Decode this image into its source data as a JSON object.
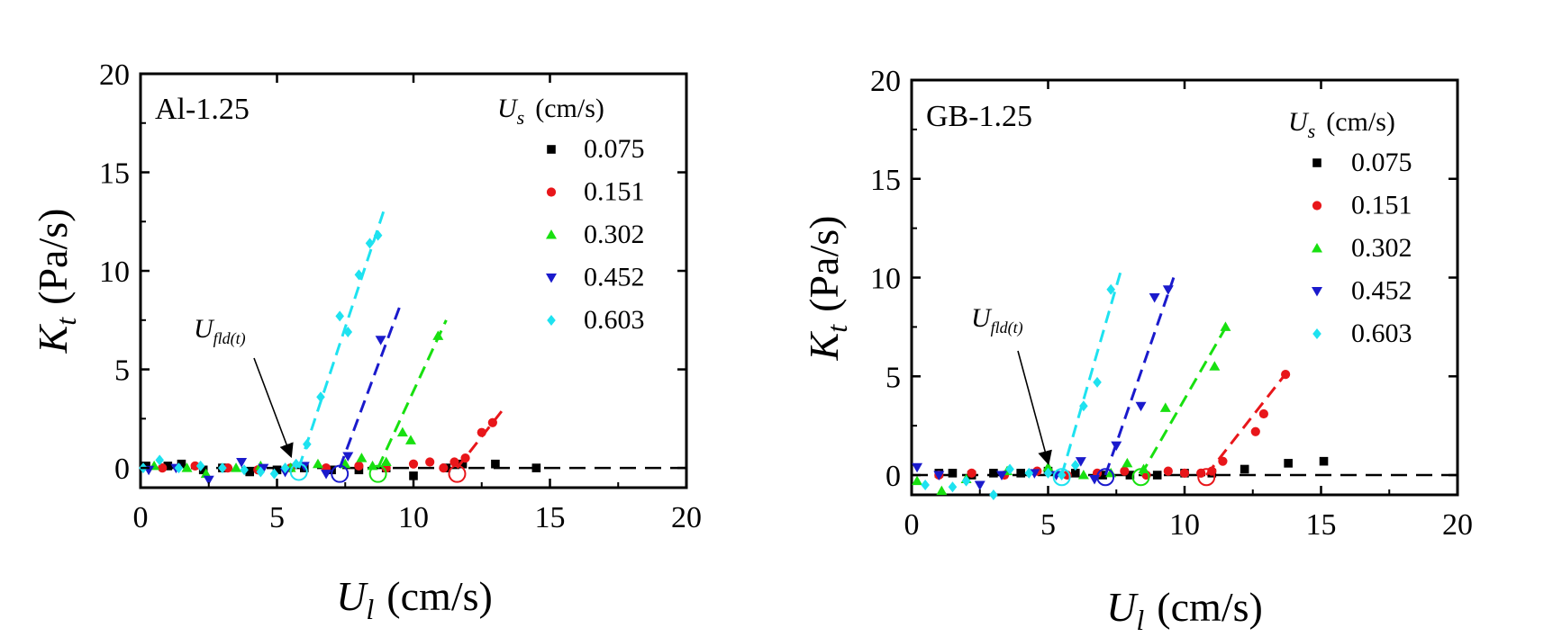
{
  "charts": [
    {
      "panel_label": "Al-1.25",
      "legend_title_sym": "U",
      "legend_title_sub": "s",
      "legend_title_unit": "(cm/s)",
      "ylabel_sym": "K",
      "ylabel_sub": "t",
      "ylabel_unit": "(Pa/s)",
      "xlabel_sym": "U",
      "xlabel_sub": "l",
      "xlabel_unit": "(cm/s)",
      "annotation_sym": "U",
      "annotation_sub": "fld(t)"
    },
    {
      "panel_label": "GB-1.25",
      "legend_title_sym": "U",
      "legend_title_sub": "s",
      "legend_title_unit": "(cm/s)",
      "ylabel_sym": "K",
      "ylabel_sub": "t",
      "ylabel_unit": "(Pa/s)",
      "xlabel_sym": "U",
      "xlabel_sub": "l",
      "xlabel_unit": "(cm/s)",
      "annotation_sym": "U",
      "annotation_sub": "fld(t)"
    }
  ],
  "chart_data": [
    {
      "type": "scatter",
      "title": "",
      "panel": "Al-1.25",
      "xlim": [
        0,
        20
      ],
      "ylim": [
        -1,
        20
      ],
      "xticks": [
        0,
        5,
        10,
        15,
        20
      ],
      "yticks": [
        0,
        5,
        10,
        15,
        20
      ],
      "grid": false,
      "legend_position": "top-right",
      "annotation_x": 5.5,
      "series": [
        {
          "name": "0.075",
          "color": "#000000",
          "marker": "square",
          "points": [
            [
              0.2,
              0.1
            ],
            [
              1.0,
              0.1
            ],
            [
              1.5,
              0.2
            ],
            [
              2.3,
              -0.1
            ],
            [
              3.0,
              0.0
            ],
            [
              4.0,
              -0.2
            ],
            [
              5.0,
              -0.1
            ],
            [
              6.0,
              0.0
            ],
            [
              7.0,
              -0.1
            ],
            [
              8.0,
              -0.1
            ],
            [
              9.0,
              0.0
            ],
            [
              10.0,
              -0.4
            ],
            [
              11.2,
              0.0
            ],
            [
              11.8,
              0.2
            ],
            [
              13.0,
              0.2
            ],
            [
              14.5,
              0.0
            ]
          ],
          "onset": null,
          "fit": null
        },
        {
          "name": "0.151",
          "color": "#e8161a",
          "marker": "circle",
          "points": [
            [
              0.8,
              0.0
            ],
            [
              2.0,
              0.1
            ],
            [
              3.2,
              0.0
            ],
            [
              4.3,
              -0.1
            ],
            [
              5.5,
              0.0
            ],
            [
              6.8,
              0.0
            ],
            [
              8.0,
              0.1
            ],
            [
              9.0,
              0.0
            ],
            [
              10.0,
              0.2
            ],
            [
              10.6,
              0.3
            ],
            [
              11.1,
              0.0
            ],
            [
              11.5,
              0.3
            ],
            [
              11.9,
              0.5
            ],
            [
              12.5,
              1.8
            ],
            [
              12.9,
              2.3
            ]
          ],
          "onset": [
            11.6,
            -0.3
          ],
          "fit": [
            [
              11.6,
              0.0
            ],
            [
              13.3,
              3.0
            ]
          ]
        },
        {
          "name": "0.302",
          "color": "#18e010",
          "marker": "triangle-up",
          "points": [
            [
              0.5,
              0.1
            ],
            [
              1.7,
              0.0
            ],
            [
              2.4,
              -0.3
            ],
            [
              3.5,
              0.0
            ],
            [
              4.4,
              0.1
            ],
            [
              5.5,
              0.0
            ],
            [
              6.5,
              0.2
            ],
            [
              7.5,
              0.2
            ],
            [
              8.1,
              0.5
            ],
            [
              8.5,
              0.1
            ],
            [
              9.0,
              0.3
            ],
            [
              9.6,
              1.8
            ],
            [
              9.9,
              1.4
            ],
            [
              10.9,
              6.7
            ]
          ],
          "onset": [
            8.7,
            -0.3
          ],
          "fit": [
            [
              8.7,
              0.0
            ],
            [
              11.2,
              7.5
            ]
          ]
        },
        {
          "name": "0.452",
          "color": "#1a1acc",
          "marker": "triangle-down",
          "points": [
            [
              0.3,
              -0.1
            ],
            [
              1.3,
              0.0
            ],
            [
              2.5,
              -0.6
            ],
            [
              3.7,
              0.3
            ],
            [
              4.5,
              0.0
            ],
            [
              5.3,
              -0.2
            ],
            [
              6.0,
              0.1
            ],
            [
              6.8,
              -0.3
            ],
            [
              7.6,
              0.6
            ],
            [
              8.8,
              6.5
            ]
          ],
          "onset": [
            7.3,
            -0.3
          ],
          "fit": [
            [
              7.3,
              0.0
            ],
            [
              9.5,
              8.2
            ]
          ]
        },
        {
          "name": "0.603",
          "color": "#1ee2f0",
          "marker": "diamond",
          "points": [
            [
              0.1,
              0.0
            ],
            [
              0.7,
              0.4
            ],
            [
              1.4,
              0.0
            ],
            [
              2.2,
              0.1
            ],
            [
              3.0,
              0.0
            ],
            [
              3.8,
              -0.1
            ],
            [
              4.4,
              -0.2
            ],
            [
              4.9,
              -0.3
            ],
            [
              5.3,
              0.0
            ],
            [
              5.7,
              0.2
            ],
            [
              6.1,
              1.2
            ],
            [
              6.6,
              3.6
            ],
            [
              7.3,
              7.7
            ],
            [
              7.6,
              6.9
            ],
            [
              8.0,
              9.8
            ],
            [
              8.4,
              11.4
            ],
            [
              8.7,
              11.8
            ]
          ],
          "onset": [
            5.8,
            -0.2
          ],
          "fit": [
            [
              5.8,
              0.0
            ],
            [
              8.9,
              13.0
            ]
          ]
        }
      ]
    },
    {
      "type": "scatter",
      "title": "",
      "panel": "GB-1.25",
      "xlim": [
        0,
        20
      ],
      "ylim": [
        -1,
        20
      ],
      "xticks": [
        0,
        5,
        10,
        15,
        20
      ],
      "yticks": [
        0,
        5,
        10,
        15,
        20
      ],
      "grid": false,
      "legend_position": "top-right",
      "annotation_x": 5.0,
      "series": [
        {
          "name": "0.075",
          "color": "#000000",
          "marker": "square",
          "points": [
            [
              1.0,
              0.1
            ],
            [
              1.5,
              0.1
            ],
            [
              2.2,
              0.0
            ],
            [
              3.0,
              0.1
            ],
            [
              4.0,
              0.1
            ],
            [
              5.0,
              0.2
            ],
            [
              6.0,
              0.1
            ],
            [
              7.0,
              0.0
            ],
            [
              8.0,
              0.0
            ],
            [
              9.0,
              0.0
            ],
            [
              10.0,
              0.1
            ],
            [
              11.0,
              0.1
            ],
            [
              12.2,
              0.3
            ],
            [
              13.8,
              0.6
            ],
            [
              15.1,
              0.7
            ]
          ],
          "onset": null,
          "fit": null
        },
        {
          "name": "0.151",
          "color": "#e8161a",
          "marker": "circle",
          "points": [
            [
              1.0,
              0.0
            ],
            [
              2.2,
              0.1
            ],
            [
              3.4,
              0.0
            ],
            [
              4.6,
              0.2
            ],
            [
              5.7,
              0.0
            ],
            [
              6.8,
              0.1
            ],
            [
              7.8,
              0.2
            ],
            [
              8.6,
              0.0
            ],
            [
              9.4,
              0.2
            ],
            [
              10.0,
              0.1
            ],
            [
              10.6,
              0.1
            ],
            [
              11.0,
              0.2
            ],
            [
              11.4,
              0.7
            ],
            [
              12.6,
              2.2
            ],
            [
              12.9,
              3.1
            ],
            [
              13.7,
              5.1
            ]
          ],
          "onset": [
            10.8,
            -0.1
          ],
          "fit": [
            [
              10.8,
              0.0
            ],
            [
              13.8,
              5.3
            ]
          ]
        },
        {
          "name": "0.302",
          "color": "#18e010",
          "marker": "triangle-up",
          "points": [
            [
              0.2,
              -0.3
            ],
            [
              1.1,
              -0.8
            ],
            [
              2.0,
              -0.2
            ],
            [
              3.5,
              0.2
            ],
            [
              5.0,
              0.4
            ],
            [
              6.3,
              0.0
            ],
            [
              7.3,
              0.1
            ],
            [
              7.9,
              0.6
            ],
            [
              8.5,
              0.3
            ],
            [
              9.3,
              3.4
            ],
            [
              11.1,
              5.5
            ],
            [
              11.5,
              7.5
            ]
          ],
          "onset": [
            8.4,
            -0.1
          ],
          "fit": [
            [
              8.4,
              0.0
            ],
            [
              11.6,
              7.7
            ]
          ]
        },
        {
          "name": "0.452",
          "color": "#1a1acc",
          "marker": "triangle-down",
          "points": [
            [
              0.2,
              0.4
            ],
            [
              1.0,
              0.0
            ],
            [
              2.5,
              -0.5
            ],
            [
              3.3,
              0.0
            ],
            [
              4.5,
              0.1
            ],
            [
              5.3,
              0.0
            ],
            [
              6.2,
              0.7
            ],
            [
              6.7,
              -0.2
            ],
            [
              7.5,
              1.5
            ],
            [
              8.4,
              3.5
            ],
            [
              8.9,
              9.0
            ],
            [
              9.4,
              9.4
            ]
          ],
          "onset": [
            7.1,
            -0.1
          ],
          "fit": [
            [
              7.1,
              0.0
            ],
            [
              9.6,
              10.0
            ]
          ]
        },
        {
          "name": "0.603",
          "color": "#1ee2f0",
          "marker": "diamond",
          "points": [
            [
              0.5,
              -0.5
            ],
            [
              1.5,
              -0.6
            ],
            [
              2.0,
              -0.3
            ],
            [
              3.0,
              -1.0
            ],
            [
              3.6,
              0.3
            ],
            [
              4.3,
              0.1
            ],
            [
              5.0,
              0.1
            ],
            [
              5.5,
              0.0
            ],
            [
              6.0,
              0.5
            ],
            [
              6.3,
              3.5
            ],
            [
              6.8,
              4.7
            ],
            [
              7.3,
              9.4
            ]
          ],
          "onset": [
            5.5,
            -0.1
          ],
          "fit": [
            [
              5.5,
              0.0
            ],
            [
              7.7,
              10.5
            ]
          ]
        }
      ]
    }
  ]
}
